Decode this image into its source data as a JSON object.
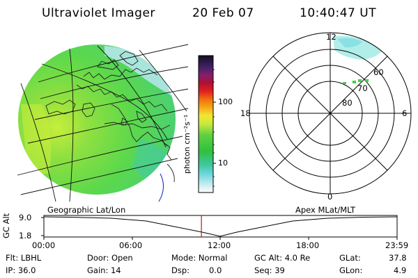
{
  "header": {
    "instrument": "Ultraviolet Imager",
    "date": "20 Feb 07",
    "time": "10:40:47 UT"
  },
  "colorbar": {
    "unit_label": "photon cm⁻²s⁻¹",
    "ticks": [
      "100",
      "10"
    ]
  },
  "polar": {
    "mlt_labels": {
      "top": "12",
      "left": "18",
      "right": "6",
      "bottom": "0"
    },
    "lat_labels": [
      "60",
      "70",
      "80"
    ]
  },
  "panel_labels": {
    "left": "Geographic Lat/Lon",
    "right": "Apex MLat/MLT"
  },
  "altitude_plot": {
    "axis_title": "GC Alt",
    "yticks": [
      "9.0",
      "1.8"
    ],
    "xticks": [
      "00:00",
      "06:00",
      "12:00",
      "18:00",
      "23:59"
    ],
    "current_time_fraction": 0.446
  },
  "footer": {
    "filter": "Flt: LBHL",
    "ip": "IP: 36.0",
    "door": "Door: Open",
    "gain": "Gain: 14",
    "mode": "Mode: Normal",
    "dsp_label": "Dsp:",
    "dsp_value": "0.0",
    "gc_alt": "GC Alt: 4.0 Re",
    "seq": "Seq: 39",
    "glat_label": "GLat:",
    "glat_value": "37.8",
    "glon_label": "GLon:",
    "glon_value": "4.9"
  },
  "colors": {
    "earth_green": "#5ce04a",
    "aurora_cyan": "#a8ece8",
    "time_marker": "#d01010"
  }
}
